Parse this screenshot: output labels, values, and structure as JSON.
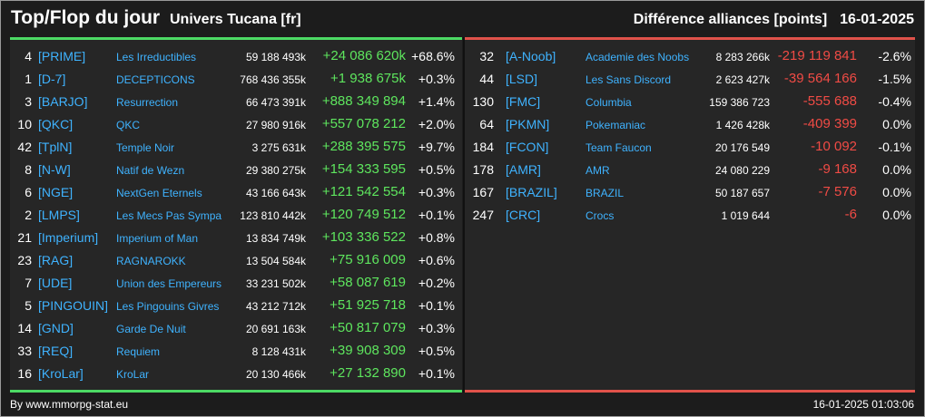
{
  "header": {
    "title": "Top/Flop du jour",
    "universe": "Univers Tucana [fr]",
    "subtitle": "Différence alliances [points]",
    "date": "16-01-2025"
  },
  "top": [
    {
      "rank": "4",
      "tag": "[PRIME]",
      "name": "Les Irreductibles",
      "total": "59 188 493k",
      "diff": "+24 086 620k",
      "pct": "+68.6%"
    },
    {
      "rank": "1",
      "tag": "[D-7]",
      "name": "DECEPTICONS",
      "total": "768 436 355k",
      "diff": "+1 938 675k",
      "pct": "+0.3%"
    },
    {
      "rank": "3",
      "tag": "[BARJO]",
      "name": "Resurrection",
      "total": "66 473 391k",
      "diff": "+888 349 894",
      "pct": "+1.4%"
    },
    {
      "rank": "10",
      "tag": "[QKC]",
      "name": "QKC",
      "total": "27 980 916k",
      "diff": "+557 078 212",
      "pct": "+2.0%"
    },
    {
      "rank": "42",
      "tag": "[TplN]",
      "name": "Temple Noir",
      "total": "3 275 631k",
      "diff": "+288 395 575",
      "pct": "+9.7%"
    },
    {
      "rank": "8",
      "tag": "[N-W]",
      "name": "Natif de Wezn",
      "total": "29 380 275k",
      "diff": "+154 333 595",
      "pct": "+0.5%"
    },
    {
      "rank": "6",
      "tag": "[NGE]",
      "name": "NextGen Eternels",
      "total": "43 166 643k",
      "diff": "+121 542 554",
      "pct": "+0.3%"
    },
    {
      "rank": "2",
      "tag": "[LMPS]",
      "name": "Les Mecs Pas Sympa",
      "total": "123 810 442k",
      "diff": "+120 749 512",
      "pct": "+0.1%"
    },
    {
      "rank": "21",
      "tag": "[Imperium]",
      "name": "Imperium of Man",
      "total": "13 834 749k",
      "diff": "+103 336 522",
      "pct": "+0.8%"
    },
    {
      "rank": "23",
      "tag": "[RAG]",
      "name": "RAGNAROKK",
      "total": "13 504 584k",
      "diff": "+75 916 009",
      "pct": "+0.6%"
    },
    {
      "rank": "7",
      "tag": "[UDE]",
      "name": "Union des Empereurs",
      "total": "33 231 502k",
      "diff": "+58 087 619",
      "pct": "+0.2%"
    },
    {
      "rank": "5",
      "tag": "[PINGOUIN]",
      "name": "Les Pingouins Givres",
      "total": "43 212 712k",
      "diff": "+51 925 718",
      "pct": "+0.1%"
    },
    {
      "rank": "14",
      "tag": "[GND]",
      "name": "Garde De Nuit",
      "total": "20 691 163k",
      "diff": "+50 817 079",
      "pct": "+0.3%"
    },
    {
      "rank": "33",
      "tag": "[REQ]",
      "name": "Requiem",
      "total": "8 128 431k",
      "diff": "+39 908 309",
      "pct": "+0.5%"
    },
    {
      "rank": "16",
      "tag": "[KroLar]",
      "name": "KroLar",
      "total": "20 130 466k",
      "diff": "+27 132 890",
      "pct": "+0.1%"
    }
  ],
  "flop": [
    {
      "rank": "32",
      "tag": "[A-Noob]",
      "name": "Academie des Noobs",
      "total": "8 283 266k",
      "diff": "-219 119 841",
      "pct": "-2.6%"
    },
    {
      "rank": "44",
      "tag": "[LSD]",
      "name": "Les Sans Discord",
      "total": "2 623 427k",
      "diff": "-39 564 166",
      "pct": "-1.5%"
    },
    {
      "rank": "130",
      "tag": "[FMC]",
      "name": "Columbia",
      "total": "159 386 723",
      "diff": "-555 688",
      "pct": "-0.4%"
    },
    {
      "rank": "64",
      "tag": "[PKMN]",
      "name": "Pokemaniac",
      "total": "1 426 428k",
      "diff": "-409 399",
      "pct": "0.0%"
    },
    {
      "rank": "184",
      "tag": "[FCON]",
      "name": "Team Faucon",
      "total": "20 176 549",
      "diff": "-10 092",
      "pct": "-0.1%"
    },
    {
      "rank": "178",
      "tag": "[AMR]",
      "name": "AMR",
      "total": "24 080 229",
      "diff": "-9 168",
      "pct": "0.0%"
    },
    {
      "rank": "167",
      "tag": "[BRAZIL]",
      "name": "BRAZIL",
      "total": "50 187 657",
      "diff": "-7 576",
      "pct": "0.0%"
    },
    {
      "rank": "247",
      "tag": "[CRC]",
      "name": "Crocs",
      "total": "1 019 644",
      "diff": "-6",
      "pct": "0.0%"
    }
  ],
  "footer": {
    "source": "By www.mmorpg-stat.eu",
    "timestamp": "16-01-2025 01:03:06"
  },
  "colors": {
    "positive": "#5ee65e",
    "negative": "#f04b45",
    "link": "#3fb3ff"
  }
}
